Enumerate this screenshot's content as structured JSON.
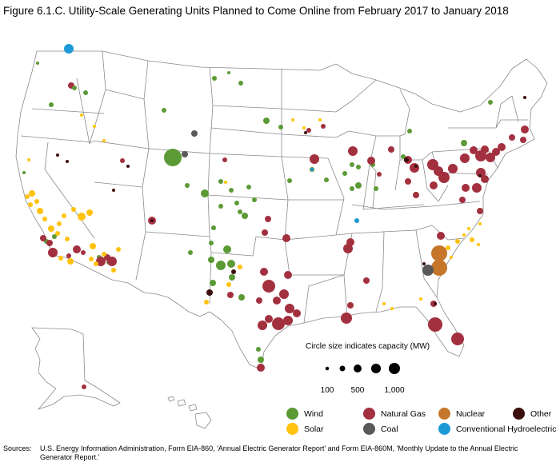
{
  "title": "Figure 6.1.C. Utility-Scale Generating Units Planned to Come Online from February 2017 to January 2018",
  "size_legend": {
    "caption": "Circle size indicates capacity (MW)",
    "values": [
      100,
      250,
      500,
      750,
      1000
    ],
    "labels": [
      "100",
      "",
      "500",
      "",
      "1,000"
    ]
  },
  "colors": {
    "wind": "#5b9a35",
    "natural_gas": "#a3303f",
    "nuclear": "#c6762b",
    "other": "#3c0f0f",
    "solar": "#ffc20e",
    "coal": "#595959",
    "hydro": "#1c9ad6"
  },
  "legend": [
    {
      "key": "wind",
      "label": "Wind"
    },
    {
      "key": "natural_gas",
      "label": "Natural Gas"
    },
    {
      "key": "nuclear",
      "label": "Nuclear"
    },
    {
      "key": "other",
      "label": "Other"
    },
    {
      "key": "solar",
      "label": "Solar"
    },
    {
      "key": "coal",
      "label": "Coal"
    },
    {
      "key": "hydro",
      "label": "Conventional Hydroelectric"
    }
  ],
  "sources": {
    "label": "Sources:",
    "text": "U.S. Energy Information Administration, Form EIA-860, 'Annual Electric Generator Report' and Form EIA-860M, 'Monthly Update to the Annual Electric Generator Report.'"
  }
}
